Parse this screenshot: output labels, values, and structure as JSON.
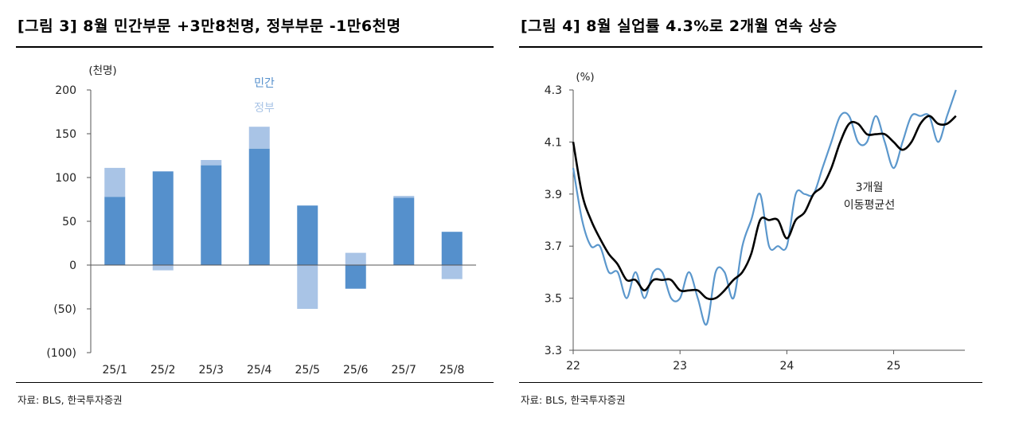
{
  "left": {
    "title": "[그림 3] 8월 민간부문 +3만8천명, 정부부문 -1만6천명",
    "source": "자료: BLS, 한국투자증권"
  },
  "right": {
    "title": "[그림 4] 8월 실업률 4.3%로 2개월 연속 상승",
    "source": "자료: BLS, 한국투자증권"
  },
  "colors": {
    "private": "#5590cc",
    "government": "#a9c4e6",
    "rate_line": "#5b97cc",
    "ma_line": "#000000",
    "axis": "#555555"
  },
  "chart_data": [
    {
      "type": "bar",
      "stacked": true,
      "unit": "(천명)",
      "categories": [
        "25/1",
        "25/2",
        "25/3",
        "25/4",
        "25/5",
        "25/6",
        "25/7",
        "25/8"
      ],
      "series": [
        {
          "name": "민간",
          "values": [
            78,
            107,
            114,
            133,
            68,
            -27,
            77,
            38
          ]
        },
        {
          "name": "정부",
          "values": [
            33,
            -6,
            6,
            25,
            -50,
            14,
            2,
            -16
          ]
        }
      ],
      "ylim": [
        -100,
        200
      ],
      "yticks": [
        200,
        150,
        100,
        50,
        0,
        -50,
        -100
      ],
      "ytick_labels": [
        "200",
        "150",
        "100",
        "50",
        "0",
        "(50)",
        "(100)"
      ],
      "legend_position": "top"
    },
    {
      "type": "line",
      "unit": "(%)",
      "ylim": [
        3.3,
        4.3
      ],
      "yticks": [
        4.3,
        4.1,
        3.9,
        3.7,
        3.5,
        3.3
      ],
      "ytick_labels": [
        "4.3",
        "4.1",
        "3.9",
        "3.7",
        "3.5",
        "3.3"
      ],
      "xticks": [
        "22",
        "23",
        "24",
        "25"
      ],
      "series": [
        {
          "name": "",
          "x": [
            "2022-01",
            "2022-02",
            "2022-03",
            "2022-04",
            "2022-05",
            "2022-06",
            "2022-07",
            "2022-08",
            "2022-09",
            "2022-10",
            "2022-11",
            "2022-12",
            "2023-01",
            "2023-02",
            "2023-03",
            "2023-04",
            "2023-05",
            "2023-06",
            "2023-07",
            "2023-08",
            "2023-09",
            "2023-10",
            "2023-11",
            "2023-12",
            "2024-01",
            "2024-02",
            "2024-03",
            "2024-04",
            "2024-05",
            "2024-06",
            "2024-07",
            "2024-08",
            "2024-09",
            "2024-10",
            "2024-11",
            "2024-12",
            "2025-01",
            "2025-02",
            "2025-03",
            "2025-04",
            "2025-05",
            "2025-06",
            "2025-07",
            "2025-08"
          ],
          "values": [
            4.0,
            3.8,
            3.7,
            3.7,
            3.6,
            3.6,
            3.5,
            3.6,
            3.5,
            3.6,
            3.6,
            3.5,
            3.5,
            3.6,
            3.5,
            3.4,
            3.6,
            3.6,
            3.5,
            3.7,
            3.8,
            3.9,
            3.7,
            3.7,
            3.7,
            3.9,
            3.9,
            3.9,
            4.0,
            4.1,
            4.2,
            4.2,
            4.1,
            4.1,
            4.2,
            4.1,
            4.0,
            4.1,
            4.2,
            4.2,
            4.2,
            4.1,
            4.2,
            4.3
          ]
        },
        {
          "name": "3개월 이동평균선",
          "x": [
            "2022-01",
            "2022-02",
            "2022-03",
            "2022-04",
            "2022-05",
            "2022-06",
            "2022-07",
            "2022-08",
            "2022-09",
            "2022-10",
            "2022-11",
            "2022-12",
            "2023-01",
            "2023-02",
            "2023-03",
            "2023-04",
            "2023-05",
            "2023-06",
            "2023-07",
            "2023-08",
            "2023-09",
            "2023-10",
            "2023-11",
            "2023-12",
            "2024-01",
            "2024-02",
            "2024-03",
            "2024-04",
            "2024-05",
            "2024-06",
            "2024-07",
            "2024-08",
            "2024-09",
            "2024-10",
            "2024-11",
            "2024-12",
            "2025-01",
            "2025-02",
            "2025-03",
            "2025-04",
            "2025-05",
            "2025-06",
            "2025-07",
            "2025-08"
          ],
          "values": [
            4.1,
            3.9,
            3.8,
            3.73,
            3.67,
            3.63,
            3.57,
            3.57,
            3.53,
            3.57,
            3.57,
            3.57,
            3.53,
            3.53,
            3.53,
            3.5,
            3.5,
            3.53,
            3.57,
            3.6,
            3.67,
            3.8,
            3.8,
            3.8,
            3.73,
            3.8,
            3.83,
            3.9,
            3.93,
            4.0,
            4.1,
            4.17,
            4.17,
            4.13,
            4.13,
            4.13,
            4.1,
            4.07,
            4.1,
            4.17,
            4.2,
            4.17,
            4.17,
            4.2
          ]
        }
      ],
      "annotation": [
        "3개월",
        "이동평균선"
      ]
    }
  ]
}
